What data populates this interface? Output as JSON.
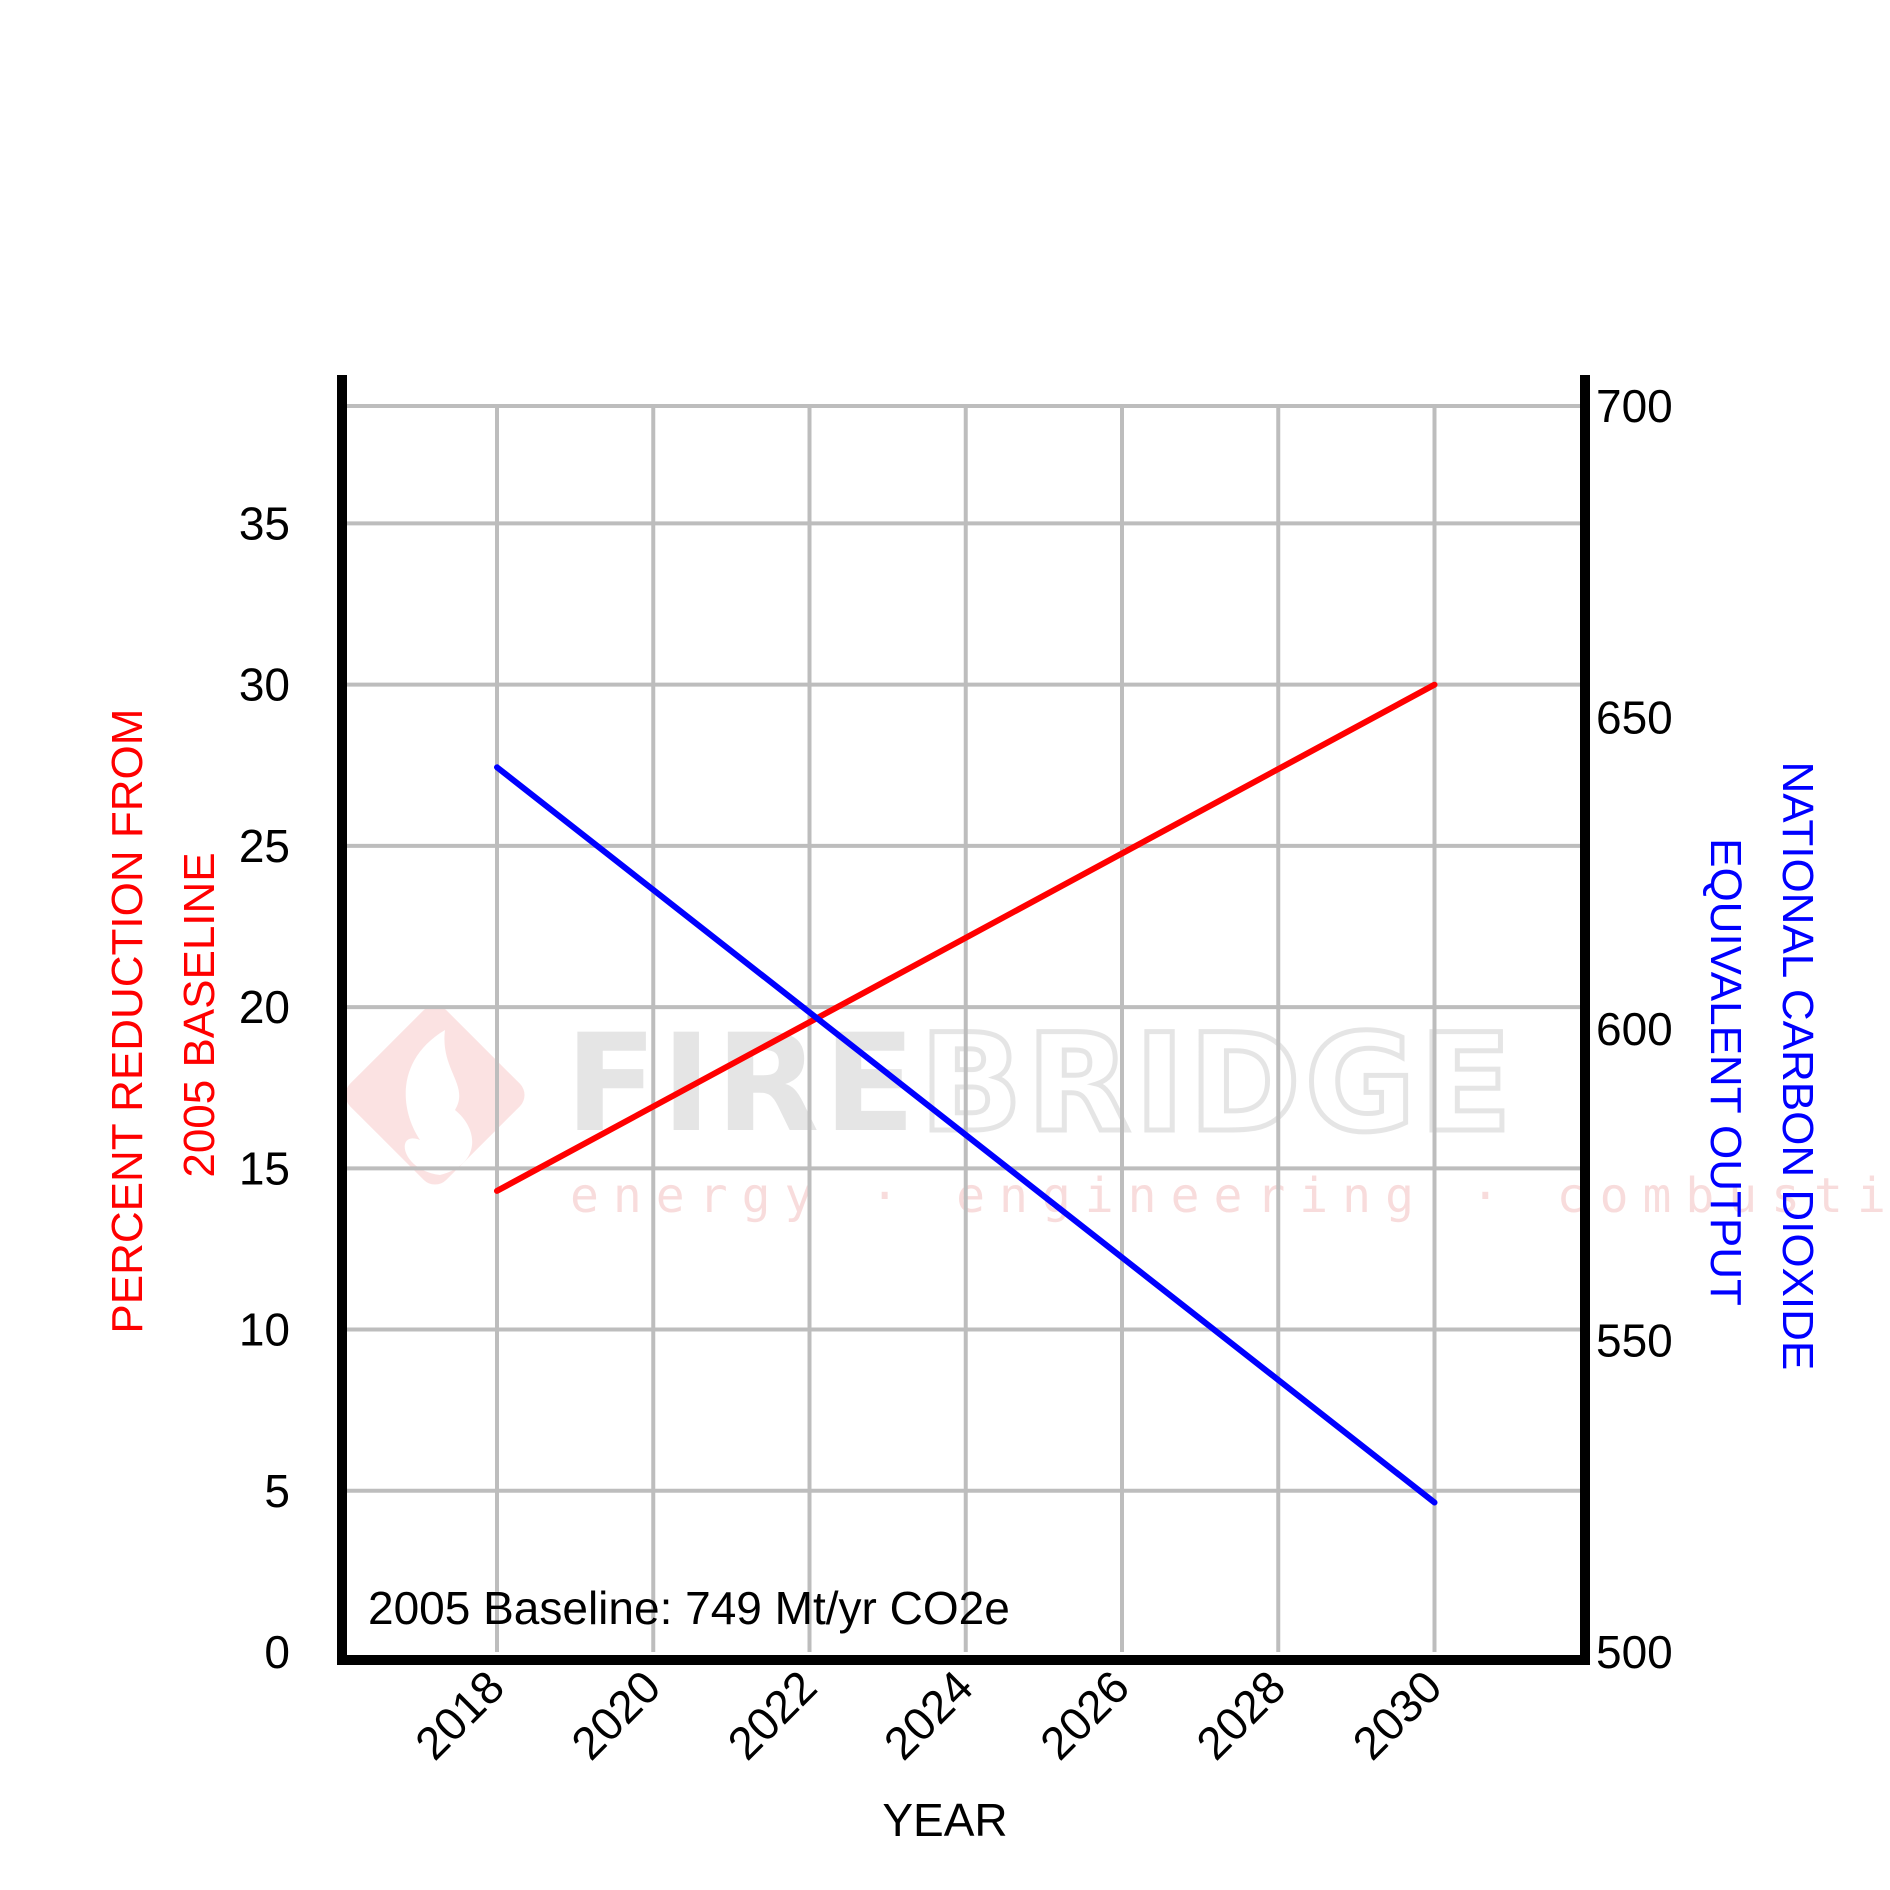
{
  "chart_data": {
    "type": "line",
    "x": [
      2018,
      2030
    ],
    "x_ticks": [
      "2018",
      "2020",
      "2022",
      "2024",
      "2026",
      "2028",
      "2030"
    ],
    "xlabel": "YEAR",
    "y_left": {
      "label_lines": [
        "PERCENT REDUCTION FROM",
        "2005 BASELINE"
      ],
      "ticks": [
        "0",
        "5",
        "10",
        "15",
        "20",
        "25",
        "30",
        "35"
      ],
      "range": [
        0,
        40
      ],
      "color": "#ff0000"
    },
    "y_right": {
      "label_lines": [
        "NATIONAL CARBON DIOXIDE",
        "EQUIVALENT OUTPUT"
      ],
      "ticks": [
        "500",
        "550",
        "600",
        "650",
        "700"
      ],
      "range": [
        500,
        700
      ],
      "color": "#0000ff"
    },
    "series": [
      {
        "axis": "left",
        "color": "#ff0000",
        "x": [
          2018,
          2030
        ],
        "values": [
          14.3,
          30.0
        ]
      },
      {
        "axis": "right",
        "color": "#0000ff",
        "x": [
          2018,
          2030
        ],
        "values": [
          642,
          524
        ]
      }
    ],
    "grid": true,
    "annotation": "2005 Baseline: 749 Mt/yr CO2e"
  },
  "watermark": {
    "brand_fire": "FIRE",
    "brand_bridge": "BRIDGE",
    "tagline": "energy · engineering · combustion"
  }
}
